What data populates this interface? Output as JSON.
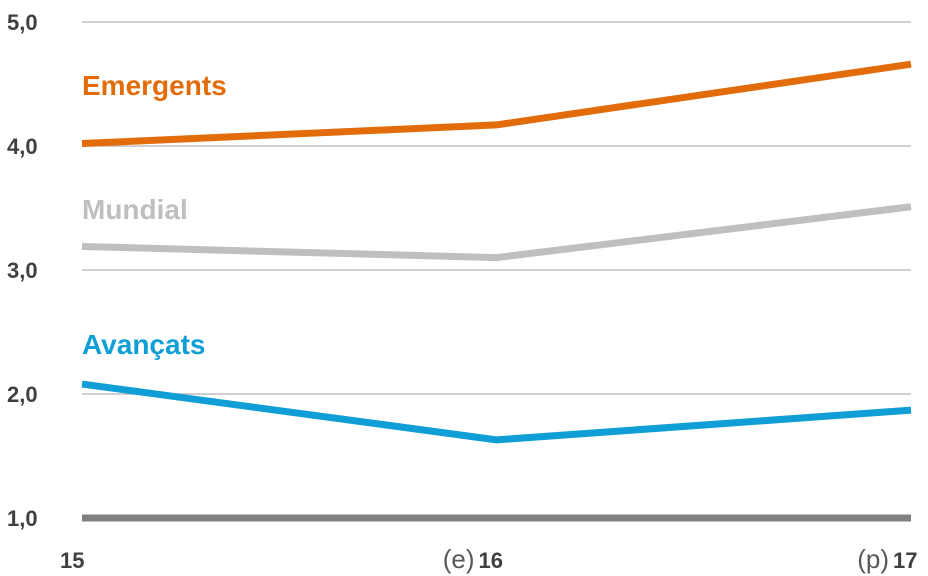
{
  "chart_data": {
    "type": "line",
    "x": [
      "15",
      "16",
      "17"
    ],
    "x_prefixes": [
      "",
      "(e)",
      "(p)"
    ],
    "y_ticks": [
      "1,0",
      "2,0",
      "3,0",
      "4,0",
      "5,0"
    ],
    "ylim": [
      1.0,
      5.0
    ],
    "grid": true,
    "series": [
      {
        "name": "Emergents",
        "values": [
          4.02,
          4.17,
          4.66
        ],
        "color": "#E36C0A"
      },
      {
        "name": "Mundial",
        "values": [
          3.19,
          3.1,
          3.51
        ],
        "color": "#BFBFBF"
      },
      {
        "name": "Avançats",
        "values": [
          2.08,
          1.63,
          1.87
        ],
        "color": "#0F9ED5"
      }
    ],
    "axis_color": "#808080",
    "grid_color": "#BFBFBF",
    "title": "",
    "xlabel": "",
    "ylabel": ""
  }
}
